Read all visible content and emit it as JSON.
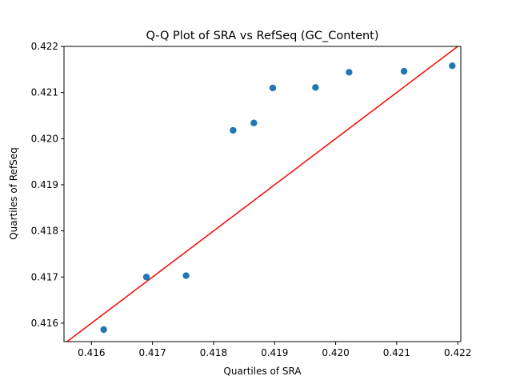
{
  "chart_data": {
    "type": "scatter",
    "title": "Q-Q Plot of SRA vs RefSeq (GC_Content)",
    "xlabel": "Quartiles of SRA",
    "ylabel": "Quartiles of RefSeq",
    "xlim": [
      0.41555,
      0.42205
    ],
    "ylim": [
      0.4156,
      0.422
    ],
    "xticks": [
      0.416,
      0.417,
      0.418,
      0.419,
      0.42,
      0.421,
      0.422
    ],
    "xtick_labels": [
      "0.416",
      "0.417",
      "0.418",
      "0.419",
      "0.420",
      "0.421",
      "0.422"
    ],
    "yticks": [
      0.416,
      0.417,
      0.418,
      0.419,
      0.42,
      0.421,
      0.422
    ],
    "ytick_labels": [
      "0.416",
      "0.417",
      "0.418",
      "0.419",
      "0.420",
      "0.421",
      "0.422"
    ],
    "grid": false,
    "points": {
      "x": [
        0.4162,
        0.4169,
        0.41755,
        0.41832,
        0.41866,
        0.41897,
        0.41967,
        0.42022,
        0.42112,
        0.42191
      ],
      "y": [
        0.41586,
        0.417,
        0.41703,
        0.42018,
        0.42034,
        0.4211,
        0.42111,
        0.42144,
        0.42146,
        0.42158
      ],
      "color": "#1f77b4"
    },
    "reference_line": {
      "x": [
        0.41555,
        0.42205
      ],
      "y": [
        0.41555,
        0.42205
      ],
      "color": "#ff0000"
    }
  }
}
